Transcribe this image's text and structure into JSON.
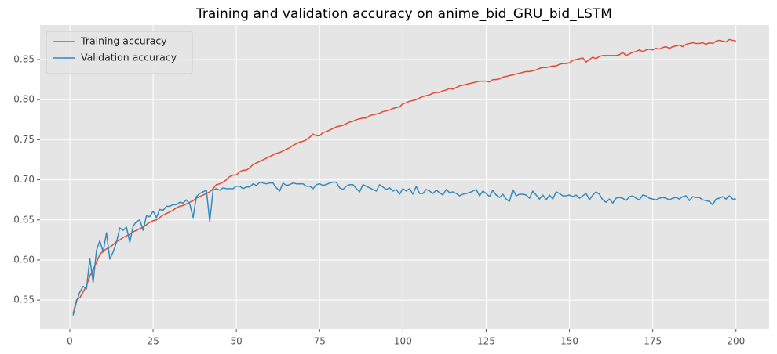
{
  "chart_data": {
    "type": "line",
    "title": "Training and validation accuracy on anime_bid_GRU_bid_LSTM",
    "x": [
      1,
      2,
      3,
      4,
      5,
      6,
      7,
      8,
      9,
      10,
      11,
      12,
      13,
      14,
      15,
      16,
      17,
      18,
      19,
      20,
      21,
      22,
      23,
      24,
      25,
      26,
      27,
      28,
      29,
      30,
      31,
      32,
      33,
      34,
      35,
      36,
      37,
      38,
      39,
      40,
      41,
      42,
      43,
      44,
      45,
      46,
      47,
      48,
      49,
      50,
      51,
      52,
      53,
      54,
      55,
      56,
      57,
      58,
      59,
      60,
      61,
      62,
      63,
      64,
      65,
      66,
      67,
      68,
      69,
      70,
      71,
      72,
      73,
      74,
      75,
      76,
      77,
      78,
      79,
      80,
      81,
      82,
      83,
      84,
      85,
      86,
      87,
      88,
      89,
      90,
      91,
      92,
      93,
      94,
      95,
      96,
      97,
      98,
      99,
      100,
      101,
      102,
      103,
      104,
      105,
      106,
      107,
      108,
      109,
      110,
      111,
      112,
      113,
      114,
      115,
      116,
      117,
      118,
      119,
      120,
      121,
      122,
      123,
      124,
      125,
      126,
      127,
      128,
      129,
      130,
      131,
      132,
      133,
      134,
      135,
      136,
      137,
      138,
      139,
      140,
      141,
      142,
      143,
      144,
      145,
      146,
      147,
      148,
      149,
      150,
      151,
      152,
      153,
      154,
      155,
      156,
      157,
      158,
      159,
      160,
      161,
      162,
      163,
      164,
      165,
      166,
      167,
      168,
      169,
      170,
      171,
      172,
      173,
      174,
      175,
      176,
      177,
      178,
      179,
      180,
      181,
      182,
      183,
      184,
      185,
      186,
      187,
      188,
      189,
      190,
      191,
      192,
      193,
      194,
      195,
      196,
      197,
      198,
      199,
      200
    ],
    "series": [
      {
        "name": "Training accuracy",
        "color": "#E24A33",
        "values": [
          0.533,
          0.55,
          0.553,
          0.56,
          0.568,
          0.58,
          0.588,
          0.597,
          0.607,
          0.611,
          0.614,
          0.616,
          0.619,
          0.623,
          0.625,
          0.628,
          0.63,
          0.632,
          0.635,
          0.637,
          0.639,
          0.641,
          0.644,
          0.647,
          0.649,
          0.65,
          0.653,
          0.656,
          0.658,
          0.66,
          0.662,
          0.665,
          0.667,
          0.668,
          0.67,
          0.672,
          0.674,
          0.677,
          0.679,
          0.681,
          0.683,
          0.685,
          0.689,
          0.694,
          0.695,
          0.697,
          0.7,
          0.704,
          0.706,
          0.706,
          0.71,
          0.712,
          0.712,
          0.715,
          0.719,
          0.721,
          0.723,
          0.725,
          0.727,
          0.729,
          0.731,
          0.733,
          0.734,
          0.736,
          0.738,
          0.74,
          0.743,
          0.745,
          0.747,
          0.748,
          0.75,
          0.753,
          0.757,
          0.755,
          0.755,
          0.759,
          0.76,
          0.762,
          0.764,
          0.766,
          0.767,
          0.768,
          0.77,
          0.772,
          0.773,
          0.775,
          0.776,
          0.777,
          0.777,
          0.78,
          0.781,
          0.782,
          0.783,
          0.785,
          0.786,
          0.787,
          0.789,
          0.79,
          0.791,
          0.795,
          0.796,
          0.798,
          0.799,
          0.8,
          0.802,
          0.804,
          0.805,
          0.806,
          0.808,
          0.809,
          0.809,
          0.811,
          0.812,
          0.814,
          0.813,
          0.815,
          0.817,
          0.818,
          0.819,
          0.82,
          0.821,
          0.822,
          0.823,
          0.823,
          0.823,
          0.822,
          0.825,
          0.825,
          0.826,
          0.828,
          0.829,
          0.83,
          0.831,
          0.832,
          0.833,
          0.834,
          0.835,
          0.835,
          0.836,
          0.837,
          0.839,
          0.84,
          0.84,
          0.841,
          0.842,
          0.842,
          0.844,
          0.845,
          0.845,
          0.846,
          0.849,
          0.85,
          0.851,
          0.852,
          0.847,
          0.85,
          0.853,
          0.851,
          0.854,
          0.855,
          0.855,
          0.855,
          0.855,
          0.855,
          0.856,
          0.859,
          0.855,
          0.857,
          0.859,
          0.86,
          0.862,
          0.86,
          0.862,
          0.863,
          0.862,
          0.864,
          0.863,
          0.865,
          0.866,
          0.864,
          0.866,
          0.867,
          0.868,
          0.866,
          0.869,
          0.87,
          0.871,
          0.87,
          0.87,
          0.871,
          0.869,
          0.871,
          0.87,
          0.873,
          0.874,
          0.873,
          0.872,
          0.875,
          0.874,
          0.873
        ]
      },
      {
        "name": "Validation accuracy",
        "color": "#348ABD",
        "values": [
          0.531,
          0.548,
          0.56,
          0.567,
          0.564,
          0.602,
          0.572,
          0.612,
          0.624,
          0.61,
          0.634,
          0.601,
          0.61,
          0.622,
          0.64,
          0.637,
          0.641,
          0.622,
          0.642,
          0.648,
          0.65,
          0.637,
          0.655,
          0.654,
          0.661,
          0.653,
          0.663,
          0.662,
          0.667,
          0.667,
          0.669,
          0.669,
          0.672,
          0.671,
          0.675,
          0.67,
          0.653,
          0.679,
          0.683,
          0.685,
          0.687,
          0.648,
          0.687,
          0.689,
          0.687,
          0.69,
          0.689,
          0.689,
          0.689,
          0.692,
          0.692,
          0.689,
          0.691,
          0.691,
          0.695,
          0.693,
          0.697,
          0.696,
          0.695,
          0.696,
          0.696,
          0.69,
          0.686,
          0.696,
          0.693,
          0.694,
          0.696,
          0.695,
          0.695,
          0.695,
          0.692,
          0.692,
          0.689,
          0.694,
          0.695,
          0.693,
          0.694,
          0.696,
          0.697,
          0.697,
          0.69,
          0.688,
          0.692,
          0.694,
          0.694,
          0.689,
          0.685,
          0.694,
          0.692,
          0.69,
          0.688,
          0.686,
          0.694,
          0.691,
          0.688,
          0.69,
          0.686,
          0.688,
          0.682,
          0.689,
          0.686,
          0.689,
          0.682,
          0.692,
          0.683,
          0.683,
          0.688,
          0.686,
          0.683,
          0.687,
          0.684,
          0.681,
          0.688,
          0.684,
          0.685,
          0.683,
          0.68,
          0.682,
          0.683,
          0.684,
          0.686,
          0.688,
          0.68,
          0.686,
          0.683,
          0.679,
          0.687,
          0.681,
          0.678,
          0.682,
          0.676,
          0.673,
          0.688,
          0.68,
          0.682,
          0.682,
          0.681,
          0.677,
          0.686,
          0.681,
          0.676,
          0.681,
          0.675,
          0.681,
          0.676,
          0.685,
          0.683,
          0.68,
          0.68,
          0.681,
          0.679,
          0.681,
          0.677,
          0.68,
          0.683,
          0.675,
          0.681,
          0.685,
          0.682,
          0.675,
          0.672,
          0.676,
          0.671,
          0.677,
          0.678,
          0.677,
          0.674,
          0.679,
          0.68,
          0.677,
          0.675,
          0.681,
          0.68,
          0.677,
          0.676,
          0.675,
          0.677,
          0.678,
          0.677,
          0.675,
          0.677,
          0.678,
          0.676,
          0.679,
          0.68,
          0.674,
          0.679,
          0.678,
          0.678,
          0.675,
          0.674,
          0.673,
          0.669,
          0.676,
          0.677,
          0.679,
          0.676,
          0.68,
          0.676,
          0.676
        ]
      }
    ],
    "xlim": [
      -8.95,
      209.95
    ],
    "xticks": [
      0,
      25,
      50,
      75,
      100,
      125,
      150,
      175,
      200
    ],
    "ylim": [
      0.514,
      0.893
    ],
    "yticks": [
      0.55,
      {
        "value": 0.6,
        "label": "0.60"
      },
      0.65,
      {
        "value": 0.7,
        "label": "0.70"
      },
      0.75,
      {
        "value": 0.8,
        "label": "0.80"
      },
      0.85
    ],
    "grid": true,
    "legend": "upper-left"
  }
}
